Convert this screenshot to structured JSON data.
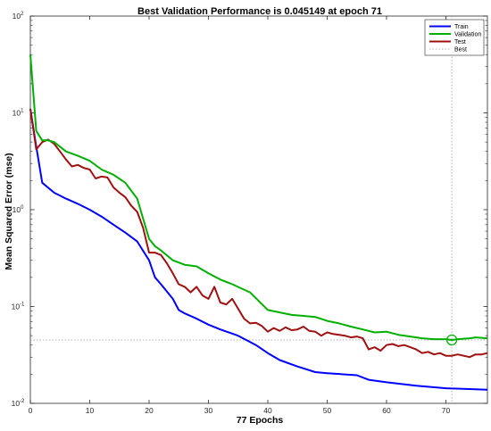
{
  "chart_data": {
    "type": "line",
    "title": "Best Validation Performance is 0.045149 at epoch 71",
    "xlabel": "77 Epochs",
    "ylabel": "Mean Squared Error  (mse)",
    "xlim": [
      0,
      77
    ],
    "ylim": [
      0.01,
      100
    ],
    "y_scale": "log",
    "x_ticks": [
      0,
      10,
      20,
      30,
      40,
      50,
      60,
      70
    ],
    "y_ticks": [
      {
        "value": 0.01,
        "base": "10",
        "exp": "-2"
      },
      {
        "value": 0.1,
        "base": "10",
        "exp": "-1"
      },
      {
        "value": 1,
        "base": "10",
        "exp": "0"
      },
      {
        "value": 10,
        "base": "10",
        "exp": "1"
      },
      {
        "value": 100,
        "base": "10",
        "exp": "2"
      }
    ],
    "grid": false,
    "legend_position": "top-right",
    "series": [
      {
        "name": "Train",
        "color": "#0000ff",
        "x": [
          0,
          1,
          2,
          4,
          6,
          8,
          10,
          12,
          14,
          16,
          18,
          20,
          21,
          22,
          24,
          25,
          26,
          28,
          30,
          32,
          35,
          38,
          40,
          42,
          45,
          48,
          50,
          55,
          57,
          60,
          65,
          70,
          77
        ],
        "y": [
          11,
          4.5,
          1.9,
          1.5,
          1.3,
          1.15,
          1.0,
          0.85,
          0.7,
          0.58,
          0.47,
          0.3,
          0.2,
          0.17,
          0.12,
          0.092,
          0.085,
          0.075,
          0.065,
          0.058,
          0.05,
          0.04,
          0.033,
          0.028,
          0.024,
          0.021,
          0.0205,
          0.0195,
          0.0175,
          0.0165,
          0.0152,
          0.0143,
          0.0138
        ]
      },
      {
        "name": "Validation",
        "color": "#00b000",
        "x": [
          0,
          1,
          2,
          3,
          4,
          6,
          8,
          10,
          12,
          14,
          16,
          18,
          20,
          21,
          22,
          24,
          26,
          28,
          30,
          32,
          34,
          37,
          40,
          42,
          44,
          46,
          48,
          50,
          52,
          54,
          56,
          58,
          60,
          62,
          64,
          66,
          68,
          70,
          71,
          72,
          74,
          75,
          77
        ],
        "y": [
          40,
          6.5,
          5.2,
          5.2,
          5.0,
          4.0,
          3.6,
          3.2,
          2.6,
          2.3,
          1.9,
          1.3,
          0.5,
          0.42,
          0.38,
          0.3,
          0.27,
          0.26,
          0.22,
          0.19,
          0.17,
          0.14,
          0.092,
          0.087,
          0.082,
          0.08,
          0.078,
          0.071,
          0.067,
          0.062,
          0.058,
          0.054,
          0.055,
          0.051,
          0.049,
          0.047,
          0.046,
          0.046,
          0.045149,
          0.046,
          0.047,
          0.048,
          0.047
        ]
      },
      {
        "name": "Test",
        "color": "#a01010",
        "x": [
          0,
          1,
          2,
          3,
          4,
          5,
          6,
          7,
          8,
          9,
          10,
          11,
          12,
          13,
          14,
          15,
          16,
          17,
          18,
          19,
          20,
          21,
          22,
          23,
          24,
          25,
          26,
          27,
          28,
          29,
          30,
          31,
          32,
          33,
          34,
          35,
          36,
          37,
          38,
          39,
          40,
          41,
          42,
          43,
          44,
          45,
          46,
          47,
          48,
          49,
          50,
          51,
          52,
          53,
          54,
          55,
          56,
          57,
          58,
          59,
          60,
          61,
          62,
          63,
          64,
          65,
          66,
          67,
          68,
          69,
          70,
          71,
          72,
          73,
          74,
          75,
          76,
          77
        ],
        "y": [
          11,
          4.2,
          5.0,
          5.3,
          4.8,
          4.0,
          3.3,
          2.8,
          2.9,
          2.7,
          2.6,
          2.1,
          2.2,
          2.15,
          1.7,
          1.5,
          1.35,
          1.1,
          0.95,
          0.65,
          0.36,
          0.36,
          0.34,
          0.28,
          0.22,
          0.17,
          0.16,
          0.14,
          0.16,
          0.13,
          0.12,
          0.16,
          0.11,
          0.105,
          0.12,
          0.095,
          0.075,
          0.067,
          0.068,
          0.063,
          0.055,
          0.06,
          0.056,
          0.061,
          0.057,
          0.058,
          0.062,
          0.056,
          0.055,
          0.05,
          0.054,
          0.052,
          0.051,
          0.05,
          0.048,
          0.049,
          0.047,
          0.036,
          0.038,
          0.035,
          0.04,
          0.041,
          0.039,
          0.04,
          0.038,
          0.036,
          0.033,
          0.034,
          0.032,
          0.033,
          0.031,
          0.031,
          0.032,
          0.031,
          0.03,
          0.032,
          0.032,
          0.033
        ]
      }
    ],
    "best": {
      "label": "Best",
      "epoch": 71,
      "value": 0.045149
    }
  }
}
